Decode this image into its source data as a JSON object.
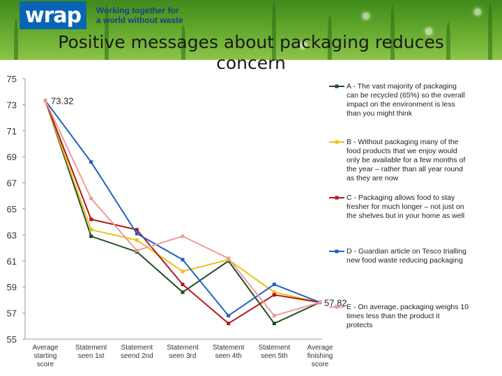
{
  "header": {
    "logo_text": "wrap",
    "tagline_line1": "Working together for",
    "tagline_line2": "a world without waste"
  },
  "title": "Positive messages about packaging reduces concern",
  "colors": {
    "A": "#1f4d22",
    "B": "#e8c21a",
    "C": "#b3161b",
    "D": "#1f5fc4",
    "E": "#ef9a9a"
  },
  "chart_data": {
    "type": "line",
    "title": "Positive messages about packaging reduces concern",
    "categories": [
      [
        "Average",
        "starting",
        "score"
      ],
      [
        "Statement",
        "seen 1st"
      ],
      [
        "Statement",
        "seend 2nd"
      ],
      [
        "Statement",
        "seen 3rd"
      ],
      [
        "Statement",
        "seen 4th"
      ],
      [
        "Statement",
        "seen 5th"
      ],
      [
        "Average",
        "finishing",
        "score"
      ]
    ],
    "ylim": [
      55,
      75
    ],
    "yticks": [
      55,
      57,
      59,
      61,
      63,
      65,
      67,
      69,
      71,
      73,
      75
    ],
    "annotations": {
      "start": "73.32",
      "end": "57.82"
    },
    "series": [
      {
        "key": "A",
        "values": [
          73.32,
          62.9,
          61.7,
          58.6,
          61.0,
          56.2,
          57.82
        ],
        "legend": [
          "A - The vast majority of packaging",
          "can be recycled (65%) so the overall",
          "impact on the environment is less",
          "than you might think"
        ]
      },
      {
        "key": "B",
        "values": [
          73.32,
          63.4,
          62.6,
          60.2,
          61.1,
          58.6,
          57.82
        ],
        "legend": [
          "B - Without packaging many of the",
          "food products that we enjoy would",
          "only be available for a few months of",
          "the year – rather than all year round",
          "as they are now"
        ]
      },
      {
        "key": "C",
        "values": [
          73.32,
          64.2,
          63.4,
          59.2,
          56.2,
          58.4,
          57.82
        ],
        "legend": [
          "C - Packaging allows food to stay",
          "fresher for much longer – not just on",
          "the shelves but in your home as well"
        ]
      },
      {
        "key": "D",
        "values": [
          73.32,
          68.6,
          63.1,
          61.1,
          56.8,
          59.2,
          57.82
        ],
        "legend": [
          "D - Guardian article on Tesco trialling",
          "new food waste reducing packaging"
        ]
      },
      {
        "key": "E",
        "values": [
          73.32,
          65.8,
          61.8,
          62.9,
          61.2,
          56.8,
          57.82
        ],
        "legend": [
          "E - On average, packaging weighs 10",
          "times less than the product it",
          "protects"
        ]
      }
    ]
  }
}
